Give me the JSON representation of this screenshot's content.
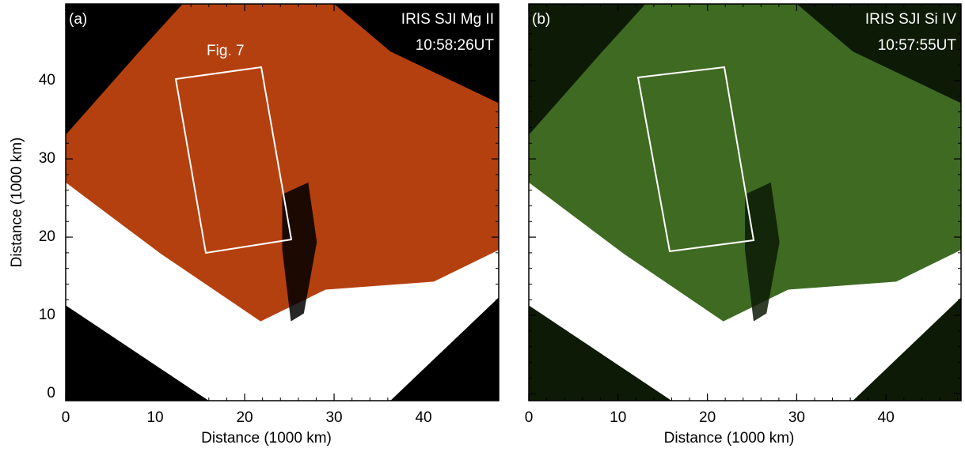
{
  "chart_data": [
    {
      "type": "image",
      "panel_label": "(a)",
      "title_lines": [
        "IRIS SJI Mg II",
        "10:58:26UT"
      ],
      "annotation": "Fig. 7",
      "xlabel": "Distance (1000 km)",
      "ylabel": "Distance (1000 km)",
      "xlim": [
        0,
        48.4
      ],
      "ylim": [
        -0.9,
        49.8
      ],
      "xticks": [
        0,
        10,
        20,
        30,
        40
      ],
      "yticks": [
        0,
        10,
        20,
        30,
        40
      ],
      "show_ytick_labels": true,
      "color": "#b5400f"
    },
    {
      "type": "image",
      "panel_label": "(b)",
      "title_lines": [
        "IRIS SJI Si IV",
        "10:57:55UT"
      ],
      "xlabel": "Distance (1000 km)",
      "xlim": [
        0,
        48.4
      ],
      "ylim": [
        -0.9,
        49.8
      ],
      "xticks": [
        0,
        10,
        20,
        30,
        40
      ],
      "yticks": [
        0,
        10,
        20,
        30,
        40
      ],
      "show_ytick_labels": false,
      "color": "#3f6a22"
    }
  ]
}
